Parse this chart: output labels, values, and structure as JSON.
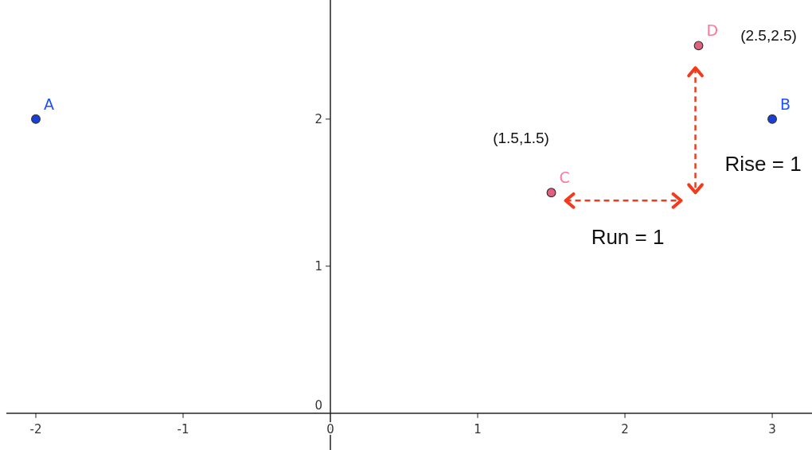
{
  "chart_data": {
    "type": "scatter",
    "xlim": [
      -2.2,
      3.27
    ],
    "ylim": [
      -0.25,
      2.81
    ],
    "xticks": [
      -2,
      -1,
      0,
      1,
      2,
      3
    ],
    "yticks": [
      0,
      1,
      2
    ],
    "grid": false,
    "marker": "circle",
    "series": [
      {
        "name": "A",
        "color": "#1740d8",
        "x": [
          -2
        ],
        "values": [
          2
        ]
      },
      {
        "name": "B",
        "color": "#1740d8",
        "x": [
          3
        ],
        "values": [
          2
        ]
      },
      {
        "name": "C",
        "color": "#e0607e",
        "x": [
          1.5
        ],
        "values": [
          1.5
        ]
      },
      {
        "name": "D",
        "color": "#e0607e",
        "x": [
          2.5
        ],
        "values": [
          2.5
        ]
      }
    ],
    "annotations": [
      "(1.5,1.5)",
      "(2.5,2.5)",
      "Rise = 1",
      "Run = 1"
    ]
  }
}
